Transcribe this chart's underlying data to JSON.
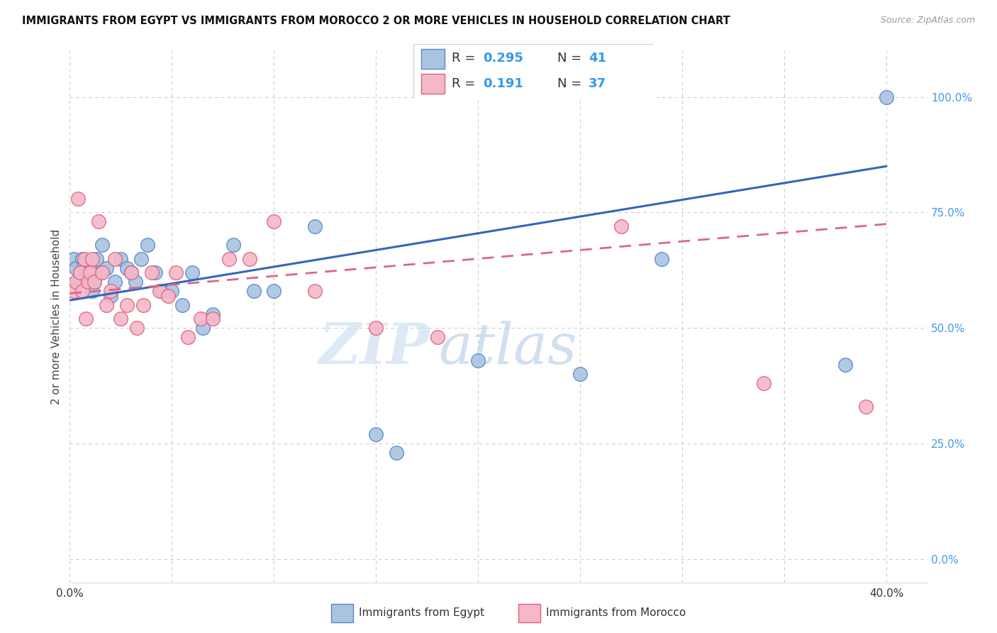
{
  "title": "IMMIGRANTS FROM EGYPT VS IMMIGRANTS FROM MOROCCO 2 OR MORE VEHICLES IN HOUSEHOLD CORRELATION CHART",
  "source": "Source: ZipAtlas.com",
  "ylabel": "2 or more Vehicles in Household",
  "x_ticks": [
    0.0,
    0.05,
    0.1,
    0.15,
    0.2,
    0.25,
    0.3,
    0.35,
    0.4
  ],
  "y_ticks": [
    0.0,
    0.25,
    0.5,
    0.75,
    1.0
  ],
  "y_tick_labels": [
    "0.0%",
    "25.0%",
    "50.0%",
    "75.0%",
    "100.0%"
  ],
  "xlim": [
    0.0,
    0.42
  ],
  "ylim": [
    -0.05,
    1.1
  ],
  "egypt_color": "#aac4e0",
  "egypt_edge_color": "#5588cc",
  "morocco_color": "#f5b8c8",
  "morocco_edge_color": "#e06080",
  "egypt_line_color": "#3366bb",
  "morocco_line_color": "#dd6688",
  "legend_egypt_r": "R = 0.295",
  "legend_egypt_n": "N = 41",
  "legend_morocco_r": "R =  0.191",
  "legend_morocco_n": "N = 37",
  "watermark_zip": "ZIP",
  "watermark_atlas": "atlas",
  "background_color": "#ffffff",
  "grid_color": "#cccccc",
  "egypt_x": [
    0.002,
    0.003,
    0.004,
    0.005,
    0.006,
    0.007,
    0.008,
    0.009,
    0.01,
    0.011,
    0.012,
    0.013,
    0.015,
    0.016,
    0.018,
    0.02,
    0.022,
    0.025,
    0.028,
    0.03,
    0.032,
    0.035,
    0.038,
    0.042,
    0.045,
    0.05,
    0.055,
    0.06,
    0.065,
    0.07,
    0.08,
    0.09,
    0.1,
    0.12,
    0.15,
    0.16,
    0.2,
    0.25,
    0.29,
    0.38,
    0.4
  ],
  "egypt_y": [
    0.65,
    0.63,
    0.6,
    0.62,
    0.65,
    0.64,
    0.61,
    0.62,
    0.6,
    0.58,
    0.6,
    0.65,
    0.62,
    0.68,
    0.63,
    0.57,
    0.6,
    0.65,
    0.63,
    0.62,
    0.6,
    0.65,
    0.68,
    0.62,
    0.58,
    0.58,
    0.55,
    0.62,
    0.5,
    0.53,
    0.68,
    0.58,
    0.58,
    0.72,
    0.27,
    0.23,
    0.43,
    0.4,
    0.65,
    0.42,
    1.0
  ],
  "morocco_x": [
    0.002,
    0.003,
    0.004,
    0.005,
    0.006,
    0.007,
    0.008,
    0.009,
    0.01,
    0.011,
    0.012,
    0.014,
    0.016,
    0.018,
    0.02,
    0.022,
    0.025,
    0.028,
    0.03,
    0.033,
    0.036,
    0.04,
    0.044,
    0.048,
    0.052,
    0.058,
    0.064,
    0.07,
    0.078,
    0.088,
    0.1,
    0.12,
    0.15,
    0.18,
    0.27,
    0.34,
    0.39
  ],
  "morocco_y": [
    0.58,
    0.6,
    0.78,
    0.62,
    0.58,
    0.65,
    0.52,
    0.6,
    0.62,
    0.65,
    0.6,
    0.73,
    0.62,
    0.55,
    0.58,
    0.65,
    0.52,
    0.55,
    0.62,
    0.5,
    0.55,
    0.62,
    0.58,
    0.57,
    0.62,
    0.48,
    0.52,
    0.52,
    0.65,
    0.65,
    0.73,
    0.58,
    0.5,
    0.48,
    0.72,
    0.38,
    0.33
  ]
}
